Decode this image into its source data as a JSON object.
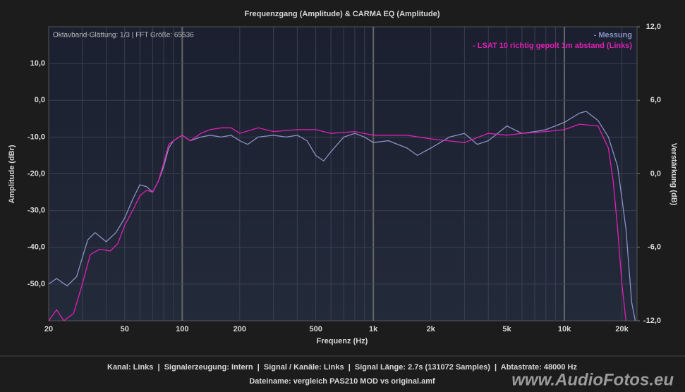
{
  "chart_data": {
    "type": "line",
    "title": "Frequenzgang (Amplitude) & CARMA EQ (Amplitude)",
    "annotation": "Oktavband-Glättung: 1/3 | FFT Größe: 65536",
    "xlabel": "Frequenz (Hz)",
    "ylabel": "Amplitude (dBr)",
    "y2label": "Verstärkung (dB)",
    "xscale": "log",
    "grid": true,
    "legend": "upper right",
    "xlim": [
      20,
      24000
    ],
    "xticks": [
      20,
      50,
      100,
      200,
      500,
      {
        "value": 1000,
        "label": "1k"
      },
      {
        "value": 2000,
        "label": "2k"
      },
      {
        "value": 5000,
        "label": "5k"
      },
      {
        "value": 10000,
        "label": "10k"
      },
      {
        "value": 20000,
        "label": "20k"
      }
    ],
    "ylim": [
      -60,
      20
    ],
    "yticks": [
      {
        "value": -50,
        "label": "-50,0"
      },
      {
        "value": -40,
        "label": "-40,0"
      },
      {
        "value": -30,
        "label": "-30,0"
      },
      {
        "value": -20,
        "label": "-20,0"
      },
      {
        "value": -10,
        "label": "-10,0"
      },
      {
        "value": 0,
        "label": "0,0"
      },
      {
        "value": 10,
        "label": "10,0"
      }
    ],
    "y2lim": [
      -12,
      12
    ],
    "y2ticks": [
      {
        "value": -12,
        "label": "-12,0"
      },
      {
        "value": -6,
        "label": "-6,0"
      },
      {
        "value": 0,
        "label": "0,0"
      },
      {
        "value": 6,
        "label": "6,0"
      },
      {
        "value": 12,
        "label": "12,0"
      }
    ],
    "series": [
      {
        "name": "- Messung",
        "color": "#8a92c4",
        "x": [
          20,
          22,
          25,
          28,
          32,
          35,
          40,
          45,
          50,
          55,
          60,
          65,
          70,
          75,
          80,
          85,
          90,
          100,
          110,
          125,
          140,
          160,
          180,
          200,
          220,
          250,
          300,
          350,
          400,
          450,
          500,
          550,
          600,
          700,
          800,
          900,
          1000,
          1200,
          1500,
          1700,
          2000,
          2500,
          3000,
          3500,
          4000,
          5000,
          6000,
          7000,
          8000,
          10000,
          12000,
          13000,
          15000,
          17000,
          19000,
          21000,
          22500,
          23500
        ],
        "values": [
          -50,
          -48.5,
          -50.5,
          -48,
          -38,
          -36,
          -38.5,
          -36,
          -32,
          -27,
          -23,
          -23.5,
          -25,
          -22,
          -18,
          -13,
          -11,
          -9.5,
          -11,
          -10,
          -9.5,
          -10,
          -9.5,
          -11,
          -12,
          -10,
          -9.5,
          -10,
          -9.5,
          -11,
          -15,
          -16.5,
          -14,
          -10,
          -9,
          -10,
          -11.5,
          -11,
          -13,
          -15,
          -13,
          -10,
          -9,
          -12,
          -11,
          -7,
          -9,
          -8.5,
          -8,
          -6,
          -3.5,
          -3,
          -5.5,
          -10,
          -18,
          -35,
          -55,
          -60
        ]
      },
      {
        "name": "- LSAT 10 richtig gepolt 1m abstand (Links)",
        "color": "#e020b4",
        "x": [
          20,
          22,
          24,
          27,
          30,
          33,
          37,
          42,
          46,
          50,
          55,
          60,
          65,
          70,
          75,
          80,
          85,
          90,
          100,
          110,
          125,
          140,
          160,
          180,
          200,
          250,
          300,
          400,
          500,
          600,
          800,
          1000,
          1500,
          2000,
          3000,
          4000,
          5000,
          6000,
          8000,
          10000,
          12000,
          15000,
          17000,
          18000,
          19000,
          20000,
          21000
        ],
        "values": [
          -60,
          -57,
          -60,
          -58,
          -50,
          -42,
          -40.5,
          -41,
          -39,
          -34,
          -30,
          -26,
          -24.5,
          -25,
          -22,
          -17,
          -12,
          -11,
          -9.5,
          -11,
          -9,
          -8,
          -7.5,
          -7.5,
          -9,
          -7.5,
          -8.5,
          -8,
          -8,
          -9,
          -8.5,
          -9.5,
          -9.5,
          -10.5,
          -11.5,
          -9,
          -9.5,
          -9,
          -8.5,
          -8,
          -6.5,
          -7,
          -13,
          -22,
          -35,
          -50,
          -60
        ]
      }
    ]
  },
  "footer": {
    "lines": [
      "Kanal: Links  |  Signalerzeugung: Intern  |  Signal / Kanäle: Links  |  Signal Länge: 2.7s (131072 Samples)  |  Abtastrate: 48000 Hz",
      "Dateiname: vergleich PAS210 MOD vs original.amf"
    ]
  },
  "watermark": "www.AudioFotos.eu"
}
